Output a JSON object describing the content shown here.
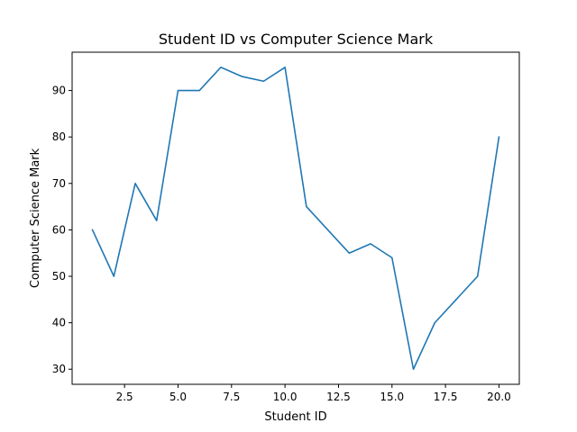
{
  "chart_data": {
    "type": "line",
    "title": "Student ID vs Computer Science Mark",
    "xlabel": "Student ID",
    "ylabel": "Computer Science Mark",
    "x": [
      1,
      2,
      3,
      4,
      5,
      6,
      7,
      8,
      9,
      10,
      11,
      12,
      13,
      14,
      15,
      16,
      17,
      18,
      19,
      20
    ],
    "series": [
      {
        "values": [
          60,
          50,
          70,
          62,
          90,
          90,
          95,
          93,
          92,
          95,
          65,
          60,
          55,
          57,
          54,
          30,
          40,
          45,
          50,
          80
        ],
        "color": "#1f77b4"
      }
    ],
    "xlim": [
      0.05,
      20.95
    ],
    "ylim": [
      26.75,
      98.25
    ],
    "xticks": [
      2.5,
      5.0,
      7.5,
      10.0,
      12.5,
      15.0,
      17.5,
      20.0
    ],
    "xtick_labels": [
      "2.5",
      "5.0",
      "7.5",
      "10.0",
      "12.5",
      "15.0",
      "17.5",
      "20.0"
    ],
    "yticks": [
      30,
      40,
      50,
      60,
      70,
      80,
      90
    ],
    "ytick_labels": [
      "30",
      "40",
      "50",
      "60",
      "70",
      "80",
      "90"
    ],
    "grid": false,
    "legend": "none"
  }
}
